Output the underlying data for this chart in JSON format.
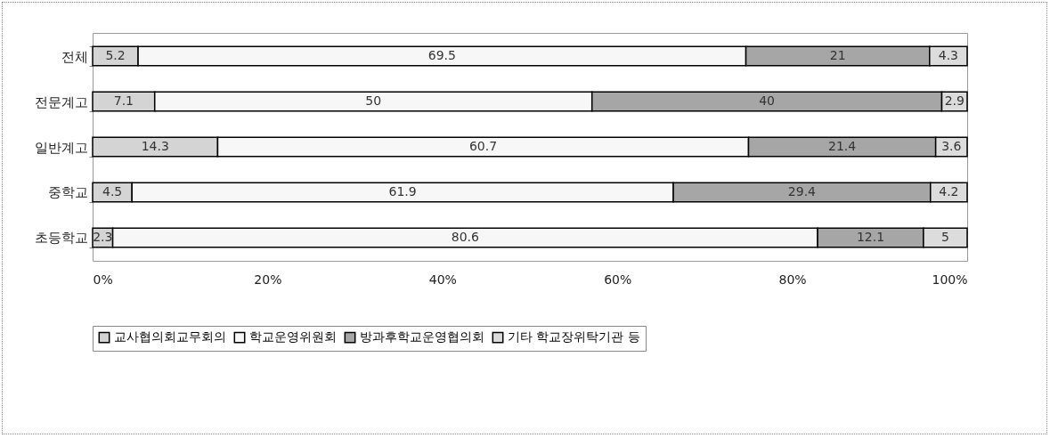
{
  "chart_data": {
    "type": "bar",
    "orientation": "horizontal",
    "stacked": true,
    "data_labels": true,
    "legend": "bottom",
    "grid": false,
    "categories": [
      "전체",
      "전문계고",
      "일반계고",
      "중학교",
      "초등학교"
    ],
    "series": [
      {
        "name": "교사협의회교무회의",
        "color": "#d4d4d4",
        "values": [
          5.2,
          7.1,
          14.3,
          4.5,
          2.3
        ]
      },
      {
        "name": "학교운영위원회",
        "color": "#f7f7f7",
        "values": [
          69.5,
          50,
          60.7,
          61.9,
          80.6
        ]
      },
      {
        "name": "방과후학교운영협의회",
        "color": "#a6a6a6",
        "values": [
          21,
          40,
          21.4,
          29.4,
          12.1
        ]
      },
      {
        "name": "기타 학교장위탁기관 등",
        "color": "#dcdcdc",
        "values": [
          4.3,
          2.9,
          3.6,
          4.2,
          5
        ]
      }
    ],
    "xlim": [
      0,
      100
    ],
    "xticks": [
      {
        "value": 0,
        "label": "0%"
      },
      {
        "value": 20,
        "label": "20%"
      },
      {
        "value": 40,
        "label": "40%"
      },
      {
        "value": 60,
        "label": "60%"
      },
      {
        "value": 80,
        "label": "80%"
      },
      {
        "value": 100,
        "label": "100%"
      }
    ]
  }
}
